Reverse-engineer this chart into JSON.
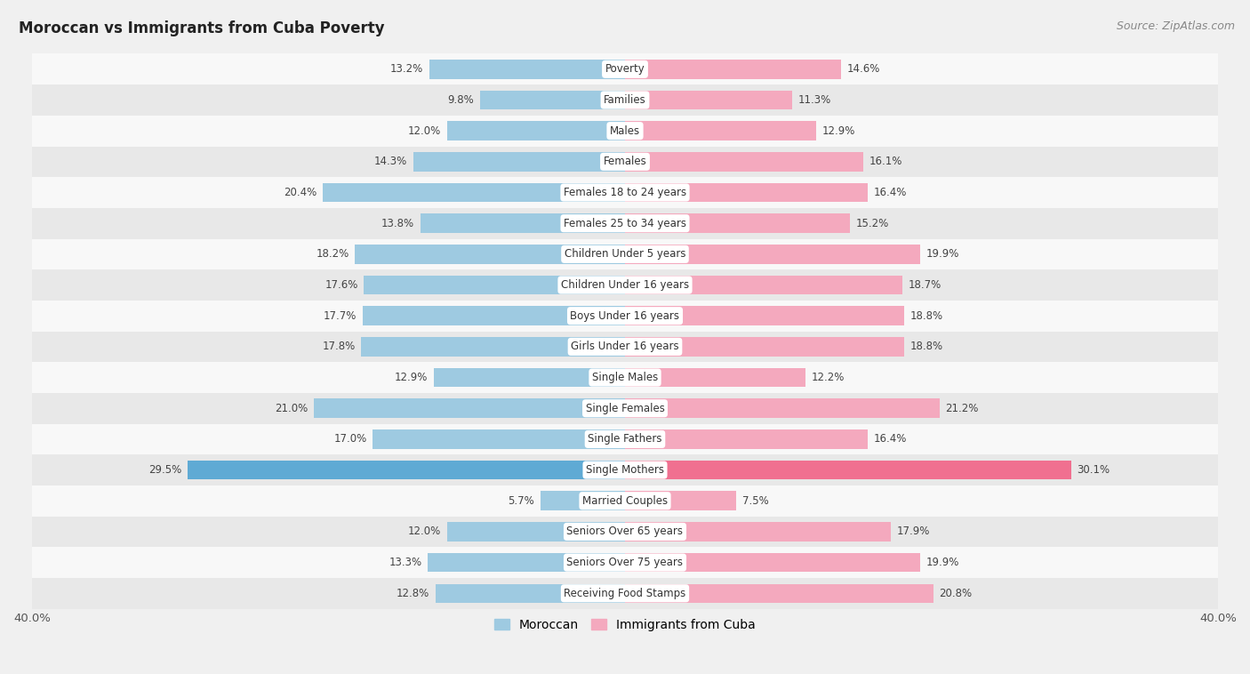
{
  "title": "Moroccan vs Immigrants from Cuba Poverty",
  "source": "Source: ZipAtlas.com",
  "categories": [
    "Poverty",
    "Families",
    "Males",
    "Females",
    "Females 18 to 24 years",
    "Females 25 to 34 years",
    "Children Under 5 years",
    "Children Under 16 years",
    "Boys Under 16 years",
    "Girls Under 16 years",
    "Single Males",
    "Single Females",
    "Single Fathers",
    "Single Mothers",
    "Married Couples",
    "Seniors Over 65 years",
    "Seniors Over 75 years",
    "Receiving Food Stamps"
  ],
  "moroccan": [
    13.2,
    9.8,
    12.0,
    14.3,
    20.4,
    13.8,
    18.2,
    17.6,
    17.7,
    17.8,
    12.9,
    21.0,
    17.0,
    29.5,
    5.7,
    12.0,
    13.3,
    12.8
  ],
  "cuba": [
    14.6,
    11.3,
    12.9,
    16.1,
    16.4,
    15.2,
    19.9,
    18.7,
    18.8,
    18.8,
    12.2,
    21.2,
    16.4,
    30.1,
    7.5,
    17.9,
    19.9,
    20.8
  ],
  "moroccan_color": "#9ecae1",
  "cuba_color": "#f4a9be",
  "moroccan_highlight": "#5faad4",
  "cuba_highlight": "#f07090",
  "background_color": "#f0f0f0",
  "row_even_color": "#e8e8e8",
  "row_odd_color": "#f8f8f8",
  "xlim": 40.0,
  "bar_height": 0.62,
  "legend_moroccan": "Moroccan",
  "legend_cuba": "Immigrants from Cuba",
  "label_fontsize": 8.5,
  "title_fontsize": 12,
  "source_fontsize": 9
}
